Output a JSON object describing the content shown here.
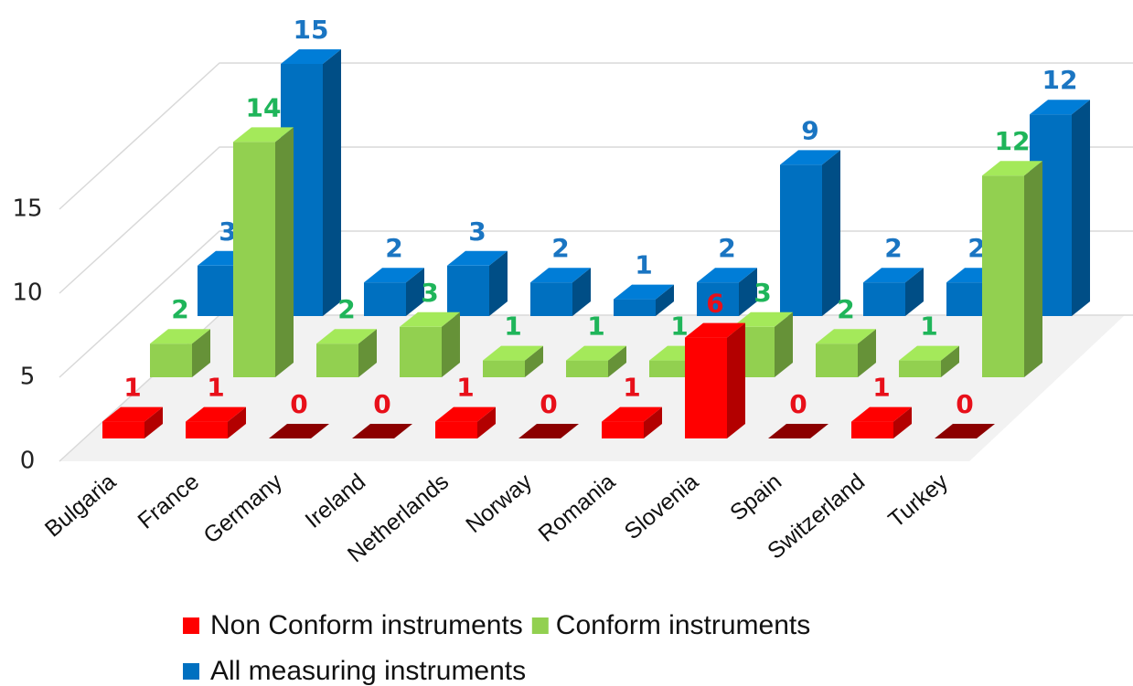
{
  "chart_data": {
    "type": "bar",
    "categories": [
      "Bulgaria",
      "France",
      "Germany",
      "Ireland",
      "Netherlands",
      "Norway",
      "Romania",
      "Slovenia",
      "Spain",
      "Switzerland",
      "Turkey"
    ],
    "series": [
      {
        "name": "Non Conform instruments",
        "color": "#ff0000",
        "values": [
          1,
          1,
          0,
          0,
          1,
          0,
          1,
          6,
          0,
          1,
          0
        ]
      },
      {
        "name": "Conform instruments",
        "color": "#92d050",
        "values": [
          2,
          14,
          2,
          3,
          1,
          1,
          1,
          3,
          2,
          1,
          12
        ]
      },
      {
        "name": "All measuring instruments",
        "color": "#0070c0",
        "values": [
          3,
          15,
          2,
          3,
          2,
          1,
          2,
          9,
          2,
          2,
          12
        ]
      }
    ],
    "ylim": [
      0,
      20
    ],
    "yticks": [
      0,
      5,
      10,
      15
    ],
    "grid": true
  }
}
